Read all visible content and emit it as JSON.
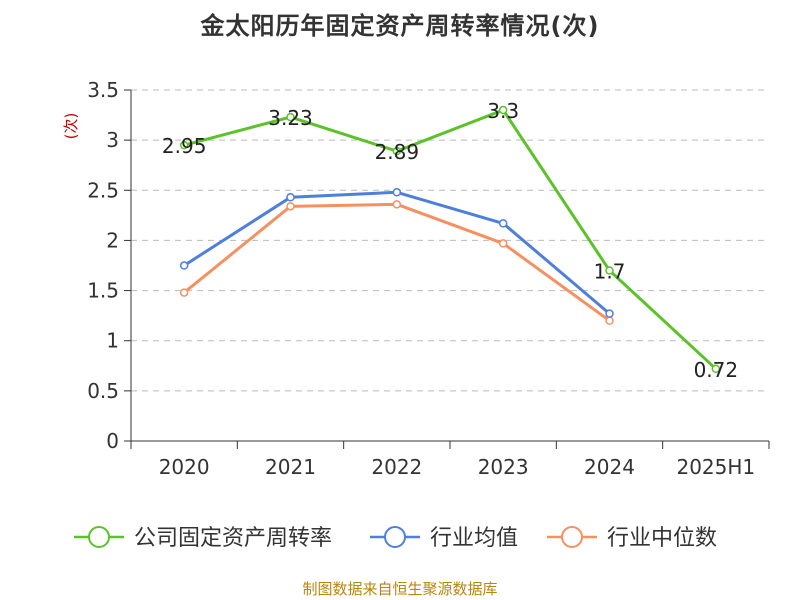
{
  "title": "金太阳历年固定资产周转率情况(次)",
  "source": "制图数据来自恒生聚源数据库",
  "colors": {
    "company": "#5cc22a",
    "industry_avg": "#4f7fdb",
    "industry_median": "#f59160",
    "grid": "#bbbbbb",
    "axis": "#333333",
    "unit": "#cc0000"
  },
  "chart_data": {
    "type": "line",
    "title": "金太阳历年固定资产周转率情况(次)",
    "ylabel": "(次)",
    "xlabel": "",
    "categories": [
      "2020",
      "2021",
      "2022",
      "2023",
      "2024",
      "2025H1"
    ],
    "ylim": [
      0,
      3.5
    ],
    "yticks": [
      0,
      0.5,
      1,
      1.5,
      2,
      2.5,
      3,
      3.5
    ],
    "ytick_labels": [
      "0",
      "0.5",
      "1",
      "1.5",
      "2",
      "2.5",
      "3",
      "3.5"
    ],
    "grid": "horizontal dashed",
    "legend_position": "bottom",
    "series": [
      {
        "name": "公司固定资产周转率",
        "values": [
          2.95,
          3.23,
          2.89,
          3.3,
          1.7,
          0.72
        ],
        "labels": [
          "2.95",
          "3.23",
          "2.89",
          "3.3",
          "1.7",
          "0.72"
        ],
        "color": "#5cc22a"
      },
      {
        "name": "行业均值",
        "values": [
          1.75,
          2.43,
          2.48,
          2.17,
          1.27,
          null
        ],
        "color": "#4f7fdb"
      },
      {
        "name": "行业中位数",
        "values": [
          1.48,
          2.34,
          2.36,
          1.97,
          1.2,
          null
        ],
        "color": "#f59160"
      }
    ]
  }
}
